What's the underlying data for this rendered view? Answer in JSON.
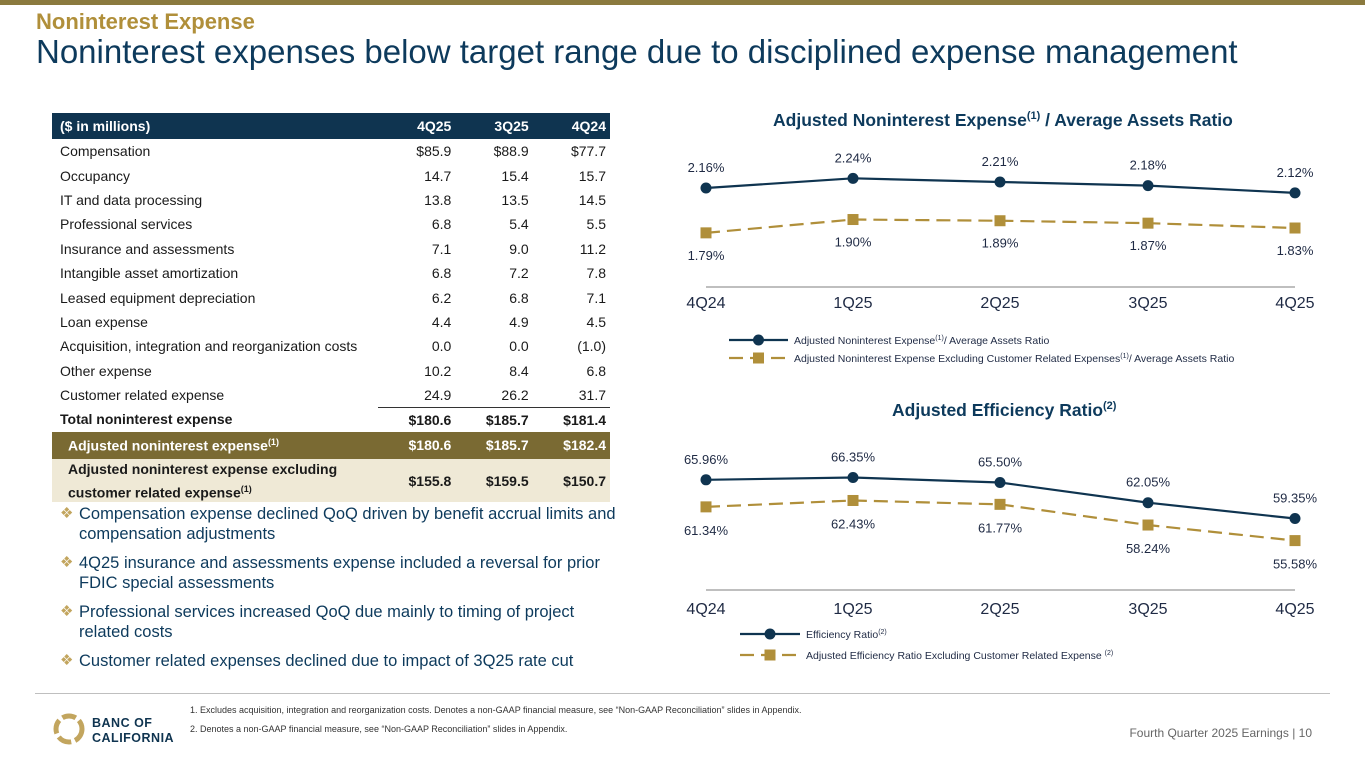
{
  "header": {
    "eyebrow": "Noninterest Expense",
    "title": "Noninterest expenses below target range due to disciplined expense management"
  },
  "table": {
    "header": [
      "($ in millions)",
      "4Q25",
      "3Q25",
      "4Q24"
    ],
    "rows": [
      [
        "Compensation",
        "$85.9",
        "$88.9",
        "$77.7"
      ],
      [
        "Occupancy",
        "14.7",
        "15.4",
        "15.7"
      ],
      [
        "IT and data processing",
        "13.8",
        "13.5",
        "14.5"
      ],
      [
        "Professional services",
        "6.8",
        "5.4",
        "5.5"
      ],
      [
        "Insurance and assessments",
        "7.1",
        "9.0",
        "11.2"
      ],
      [
        "Intangible asset amortization",
        "6.8",
        "7.2",
        "7.8"
      ],
      [
        "Leased equipment depreciation",
        "6.2",
        "6.8",
        "7.1"
      ],
      [
        "Loan expense",
        "4.4",
        "4.9",
        "4.5"
      ],
      [
        "Acquisition, integration and reorganization costs",
        "0.0",
        "0.0",
        "(1.0)"
      ],
      [
        "Other expense",
        "10.2",
        "8.4",
        "6.8"
      ],
      [
        "Customer related expense",
        "24.9",
        "26.2",
        "31.7"
      ]
    ],
    "total": [
      "Total noninterest expense",
      "$180.6",
      "$185.7",
      "$181.4"
    ],
    "adjusted": {
      "label": "Adjusted noninterest expense",
      "sup": "(1)",
      "values": [
        "$180.6",
        "$185.7",
        "$182.4"
      ]
    },
    "adjusted_excl": {
      "label_line1": "Adjusted noninterest expense excluding",
      "label_line2": "customer related expense",
      "sup": "(1)",
      "values": [
        "$155.8",
        "$159.5",
        "$150.7"
      ]
    }
  },
  "bullets": [
    "Compensation expense declined QoQ driven by benefit accrual limits and compensation adjustments",
    "4Q25 insurance and assessments expense included a reversal for prior FDIC special assessments",
    "Professional services increased QoQ due mainly to timing of project related costs",
    "Customer related expenses declined due to impact of 3Q25 rate cut"
  ],
  "chart_data": [
    {
      "type": "line",
      "title": "Adjusted Noninterest Expense",
      "title_sup": "(1)",
      "title_suffix": " / Average Assets Ratio",
      "categories": [
        "4Q24",
        "1Q25",
        "2Q25",
        "3Q25",
        "4Q25"
      ],
      "ylim": [
        1.5,
        2.35
      ],
      "series": [
        {
          "name": "Adjusted Noninterest Expense",
          "name_sup": "(1)",
          "name_suffix": "/ Average Assets Ratio",
          "values": [
            2.16,
            2.24,
            2.21,
            2.18,
            2.12
          ],
          "labels": [
            "2.16%",
            "2.24%",
            "2.21%",
            "2.18%",
            "2.12%"
          ],
          "color": "#0f3450",
          "style": "solid",
          "marker": "circle"
        },
        {
          "name": "Adjusted Noninterest Expense Excluding Customer Related Expenses",
          "name_sup": "(1)",
          "name_suffix": "/ Average Assets Ratio",
          "values": [
            1.79,
            1.9,
            1.89,
            1.87,
            1.83
          ],
          "labels": [
            "1.79%",
            "1.90%",
            "1.89%",
            "1.87%",
            "1.83%"
          ],
          "color": "#b08f3a",
          "style": "dashed",
          "marker": "square"
        }
      ]
    },
    {
      "type": "line",
      "title": "Adjusted Efficiency Ratio",
      "title_sup": "(2)",
      "title_suffix": "",
      "categories": [
        "4Q24",
        "1Q25",
        "2Q25",
        "3Q25",
        "4Q25"
      ],
      "ylim": [
        48,
        69
      ],
      "series": [
        {
          "name": "Efficiency Ratio",
          "name_sup": "(2)",
          "name_suffix": "",
          "values": [
            65.96,
            66.35,
            65.5,
            62.05,
            59.35
          ],
          "labels": [
            "65.96%",
            "66.35%",
            "65.50%",
            "62.05%",
            "59.35%"
          ],
          "color": "#0f3450",
          "style": "solid",
          "marker": "circle"
        },
        {
          "name": "Adjusted Efficiency Ratio Excluding Customer Related Expense ",
          "name_sup": "(2)",
          "name_suffix": "",
          "values": [
            61.34,
            62.43,
            61.77,
            58.24,
            55.58
          ],
          "labels": [
            "61.34%",
            "62.43%",
            "61.77%",
            "58.24%",
            "55.58%"
          ],
          "color": "#b08f3a",
          "style": "dashed",
          "marker": "square"
        }
      ]
    }
  ],
  "footnotes": [
    "1.  Excludes acquisition, integration and reorganization costs. Denotes a non-GAAP financial measure, see “Non-GAAP Reconciliation” slides in Appendix.",
    "2.  Denotes a non-GAAP financial measure, see “Non-GAAP Reconciliation” slides in Appendix."
  ],
  "footer": {
    "text": "Fourth Quarter 2025 Earnings |  10"
  },
  "logo": {
    "line1": "BANC OF",
    "line2": "CALIFORNIA"
  }
}
